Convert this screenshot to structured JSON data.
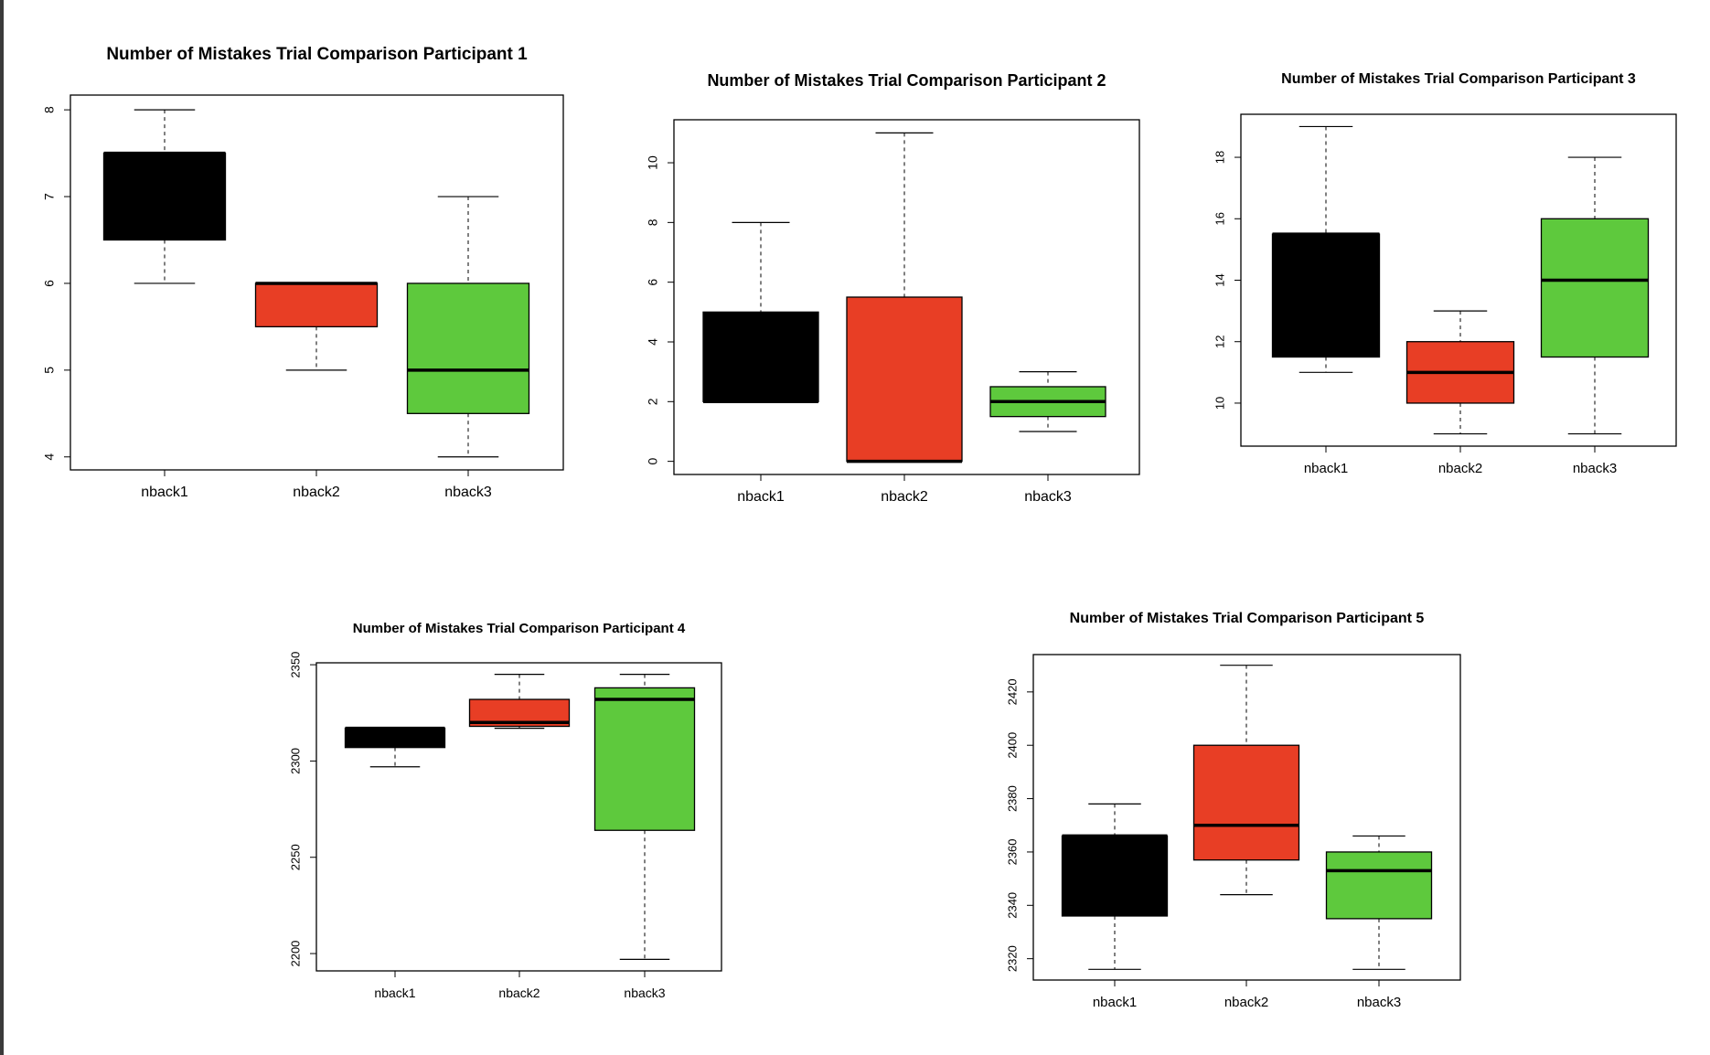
{
  "colors": {
    "nback1": "#000000",
    "nback2": "#e83e25",
    "nback3": "#5ec93d",
    "axis": "#000000",
    "whisker": "#000000"
  },
  "chart_data": [
    {
      "type": "boxplot",
      "title": "Number of Mistakes Trial Comparison Participant 1",
      "categories": [
        "nback1",
        "nback2",
        "nback3"
      ],
      "yticks": [
        4,
        5,
        6,
        7,
        8
      ],
      "ylim": [
        3.85,
        8.17
      ],
      "boxes": [
        {
          "name": "nback1",
          "min": 6,
          "q1": 6.5,
          "median": 7.5,
          "q3": 7.5,
          "max": 8,
          "color": "#000000"
        },
        {
          "name": "nback2",
          "min": 5,
          "q1": 5.5,
          "median": 6,
          "q3": 6,
          "max": 6,
          "color": "#e83e25"
        },
        {
          "name": "nback3",
          "min": 4,
          "q1": 4.5,
          "median": 5,
          "q3": 6,
          "max": 7,
          "color": "#5ec93d"
        }
      ]
    },
    {
      "type": "boxplot",
      "title": "Number of Mistakes Trial Comparison Participant 2",
      "categories": [
        "nback1",
        "nback2",
        "nback3"
      ],
      "yticks": [
        0,
        2,
        4,
        6,
        8,
        10
      ],
      "ylim": [
        -0.44,
        11.44
      ],
      "boxes": [
        {
          "name": "nback1",
          "min": 2,
          "q1": 2,
          "median": 2,
          "q3": 5,
          "max": 8,
          "color": "#000000"
        },
        {
          "name": "nback2",
          "min": 0,
          "q1": 0,
          "median": 0,
          "q3": 5.5,
          "max": 11,
          "color": "#e83e25"
        },
        {
          "name": "nback3",
          "min": 1,
          "q1": 1.5,
          "median": 2,
          "q3": 2.5,
          "max": 3,
          "color": "#5ec93d"
        }
      ]
    },
    {
      "type": "boxplot",
      "title": "Number of Mistakes Trial Comparison Participant 3",
      "categories": [
        "nback1",
        "nback2",
        "nback3"
      ],
      "yticks": [
        10,
        12,
        14,
        16,
        18
      ],
      "ylim": [
        8.6,
        19.4
      ],
      "boxes": [
        {
          "name": "nback1",
          "min": 11,
          "q1": 11.5,
          "median": 15.5,
          "q3": 15.5,
          "max": 19,
          "color": "#000000"
        },
        {
          "name": "nback2",
          "min": 9,
          "q1": 10,
          "median": 11,
          "q3": 12,
          "max": 13,
          "color": "#e83e25"
        },
        {
          "name": "nback3",
          "min": 9,
          "q1": 11.5,
          "median": 14,
          "q3": 16,
          "max": 18,
          "color": "#5ec93d"
        }
      ]
    },
    {
      "type": "boxplot",
      "title": "Number of Mistakes Trial Comparison Participant 4",
      "categories": [
        "nback1",
        "nback2",
        "nback3"
      ],
      "yticks": [
        2200,
        2250,
        2300,
        2350
      ],
      "ylim": [
        2191,
        2351
      ],
      "boxes": [
        {
          "name": "nback1",
          "min": 2297,
          "q1": 2307,
          "median": 2317,
          "q3": 2317,
          "max": 2317,
          "color": "#000000"
        },
        {
          "name": "nback2",
          "min": 2317,
          "q1": 2318,
          "median": 2320,
          "q3": 2332,
          "max": 2345,
          "color": "#e83e25"
        },
        {
          "name": "nback3",
          "min": 2197,
          "q1": 2264,
          "median": 2332,
          "q3": 2338,
          "max": 2345,
          "color": "#5ec93d"
        }
      ]
    },
    {
      "type": "boxplot",
      "title": "Number of Mistakes Trial Comparison Participant 5",
      "categories": [
        "nback1",
        "nback2",
        "nback3"
      ],
      "yticks": [
        2320,
        2340,
        2360,
        2380,
        2400,
        2420
      ],
      "ylim": [
        2312,
        2434
      ],
      "boxes": [
        {
          "name": "nback1",
          "min": 2316,
          "q1": 2336,
          "median": 2366,
          "q3": 2366,
          "max": 2378,
          "color": "#000000"
        },
        {
          "name": "nback2",
          "min": 2344,
          "q1": 2357,
          "median": 2370,
          "q3": 2400,
          "max": 2430,
          "color": "#e83e25"
        },
        {
          "name": "nback3",
          "min": 2316,
          "q1": 2335,
          "median": 2353,
          "q3": 2360,
          "max": 2366,
          "color": "#5ec93d"
        }
      ]
    }
  ]
}
